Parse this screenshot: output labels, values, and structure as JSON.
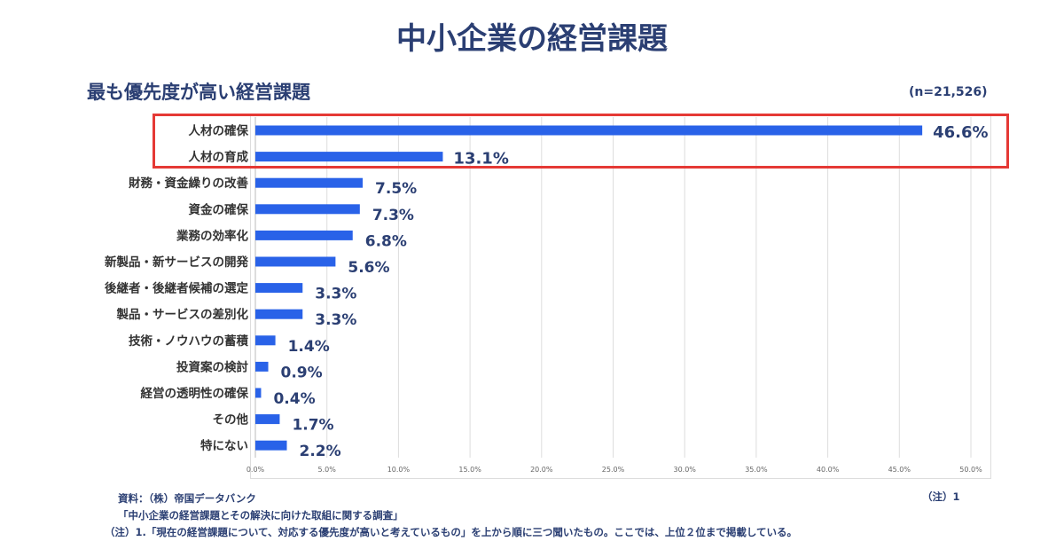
{
  "title": "中小企業の経営課題",
  "chart_data": {
    "type": "bar",
    "orientation": "horizontal",
    "title": "最も優先度が高い経営課題",
    "sample": "(n=21,526)",
    "categories": [
      "人材の確保",
      "人材の育成",
      "財務・資金繰りの改善",
      "資金の確保",
      "業務の効率化",
      "新製品・新サービスの開発",
      "後継者・後継者候補の選定",
      "製品・サービスの差別化",
      "技術・ノウハウの蓄積",
      "投資案の検討",
      "経営の透明性の確保",
      "その他",
      "特にない"
    ],
    "values": [
      46.6,
      13.1,
      7.5,
      7.3,
      6.8,
      5.6,
      3.3,
      3.3,
      1.4,
      0.9,
      0.4,
      1.7,
      2.2
    ],
    "labels": [
      "46.6%",
      "13.1%",
      "7.5%",
      "7.3%",
      "6.8%",
      "5.6%",
      "3.3%",
      "3.3%",
      "1.4%",
      "0.9%",
      "0.4%",
      "1.7%",
      "2.2%"
    ],
    "xlim": [
      0,
      50
    ],
    "xticks": [
      "0.0%",
      "5.0%",
      "10.0%",
      "15.0%",
      "20.0%",
      "25.0%",
      "30.0%",
      "35.0%",
      "40.0%",
      "45.0%",
      "50.0%"
    ],
    "grid": true,
    "highlighted": [
      "人材の確保",
      "人材の育成"
    ],
    "bar_color": "#2962e8",
    "highlight_color": "#e53935"
  },
  "footer": {
    "source": "資料：（株）帝国データバンク",
    "survey": "「中小企業の経営課題とその解決に向けた取組に関する調査」",
    "note": "（注）1.「現在の経営課題について、対応する優先度が高いと考えているもの」を上から順に三つ聞いたもの。ここでは、上位２位まで掲載している。",
    "note_ref": "（注）1"
  }
}
